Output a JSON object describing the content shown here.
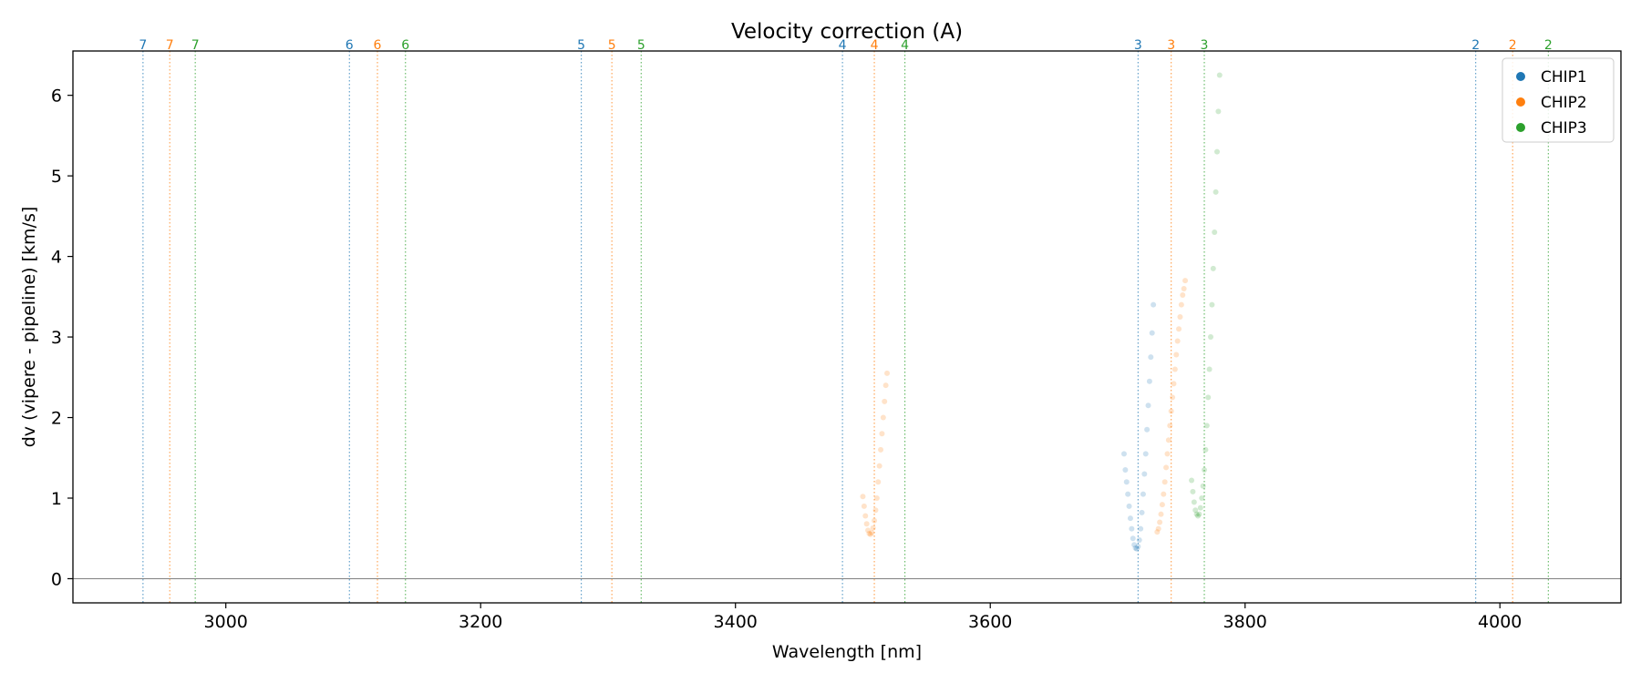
{
  "chart_data": {
    "type": "scatter",
    "title": "Velocity correction (A)",
    "xlabel": "Wavelength [nm]",
    "ylabel": "dv (vipere - pipeline) [km/s]",
    "xlim": [
      2880,
      4095
    ],
    "ylim": [
      -0.3,
      6.55
    ],
    "xticks": [
      3000,
      3200,
      3400,
      3600,
      3800,
      4000
    ],
    "yticks": [
      0,
      1,
      2,
      3,
      4,
      5,
      6
    ],
    "zero_line": 0,
    "legend": {
      "placement": "top-right"
    },
    "series": [
      {
        "name": "CHIP1",
        "color": "#1f77b4",
        "order_lines": [
          {
            "order": "7",
            "x": 2935
          },
          {
            "order": "6",
            "x": 3097
          },
          {
            "order": "5",
            "x": 3279
          },
          {
            "order": "4",
            "x": 3484
          },
          {
            "order": "3",
            "x": 3716
          },
          {
            "order": "2",
            "x": 3981
          }
        ],
        "points": [
          [
            3705,
            1.55
          ],
          [
            3706,
            1.35
          ],
          [
            3707,
            1.2
          ],
          [
            3708,
            1.05
          ],
          [
            3709,
            0.9
          ],
          [
            3710,
            0.75
          ],
          [
            3711,
            0.62
          ],
          [
            3712,
            0.5
          ],
          [
            3713,
            0.42
          ],
          [
            3714,
            0.38
          ],
          [
            3715,
            0.37
          ],
          [
            3716,
            0.4
          ],
          [
            3717,
            0.48
          ],
          [
            3718,
            0.62
          ],
          [
            3719,
            0.82
          ],
          [
            3720,
            1.05
          ],
          [
            3721,
            1.3
          ],
          [
            3722,
            1.55
          ],
          [
            3723,
            1.85
          ],
          [
            3724,
            2.15
          ],
          [
            3725,
            2.45
          ],
          [
            3726,
            2.75
          ],
          [
            3727,
            3.05
          ],
          [
            3728,
            3.4
          ]
        ]
      },
      {
        "name": "CHIP2",
        "color": "#ff7f0e",
        "order_lines": [
          {
            "order": "7",
            "x": 2956
          },
          {
            "order": "6",
            "x": 3119
          },
          {
            "order": "5",
            "x": 3303
          },
          {
            "order": "4",
            "x": 3509
          },
          {
            "order": "3",
            "x": 3742
          },
          {
            "order": "2",
            "x": 4010
          }
        ],
        "points": [
          [
            3500,
            1.02
          ],
          [
            3501,
            0.9
          ],
          [
            3502,
            0.78
          ],
          [
            3503,
            0.68
          ],
          [
            3504,
            0.6
          ],
          [
            3505,
            0.56
          ],
          [
            3506,
            0.55
          ],
          [
            3507,
            0.57
          ],
          [
            3508,
            0.63
          ],
          [
            3509,
            0.72
          ],
          [
            3510,
            0.85
          ],
          [
            3511,
            1.0
          ],
          [
            3512,
            1.2
          ],
          [
            3513,
            1.4
          ],
          [
            3514,
            1.6
          ],
          [
            3515,
            1.8
          ],
          [
            3516,
            2.0
          ],
          [
            3517,
            2.2
          ],
          [
            3518,
            2.4
          ],
          [
            3519,
            2.55
          ],
          [
            3731,
            0.58
          ],
          [
            3732,
            0.62
          ],
          [
            3733,
            0.7
          ],
          [
            3734,
            0.8
          ],
          [
            3735,
            0.92
          ],
          [
            3736,
            1.05
          ],
          [
            3737,
            1.2
          ],
          [
            3738,
            1.38
          ],
          [
            3739,
            1.55
          ],
          [
            3740,
            1.72
          ],
          [
            3741,
            1.9
          ],
          [
            3742,
            2.08
          ],
          [
            3743,
            2.25
          ],
          [
            3744,
            2.42
          ],
          [
            3745,
            2.6
          ],
          [
            3746,
            2.78
          ],
          [
            3747,
            2.95
          ],
          [
            3748,
            3.1
          ],
          [
            3749,
            3.25
          ],
          [
            3750,
            3.4
          ],
          [
            3751,
            3.52
          ],
          [
            3752,
            3.6
          ],
          [
            3753,
            3.7
          ]
        ]
      },
      {
        "name": "CHIP3",
        "color": "#2ca02c",
        "order_lines": [
          {
            "order": "7",
            "x": 2976
          },
          {
            "order": "6",
            "x": 3141
          },
          {
            "order": "5",
            "x": 3326
          },
          {
            "order": "4",
            "x": 3533
          },
          {
            "order": "3",
            "x": 3768
          },
          {
            "order": "2",
            "x": 4038
          }
        ],
        "points": [
          [
            3758,
            1.22
          ],
          [
            3759,
            1.08
          ],
          [
            3760,
            0.95
          ],
          [
            3761,
            0.85
          ],
          [
            3762,
            0.8
          ],
          [
            3763,
            0.78
          ],
          [
            3764,
            0.8
          ],
          [
            3765,
            0.88
          ],
          [
            3766,
            1.0
          ],
          [
            3767,
            1.15
          ],
          [
            3768,
            1.35
          ],
          [
            3769,
            1.6
          ],
          [
            3770,
            1.9
          ],
          [
            3771,
            2.25
          ],
          [
            3772,
            2.6
          ],
          [
            3773,
            3.0
          ],
          [
            3774,
            3.4
          ],
          [
            3775,
            3.85
          ],
          [
            3776,
            4.3
          ],
          [
            3777,
            4.8
          ],
          [
            3778,
            5.3
          ],
          [
            3779,
            5.8
          ],
          [
            3780,
            6.25
          ]
        ]
      }
    ]
  }
}
